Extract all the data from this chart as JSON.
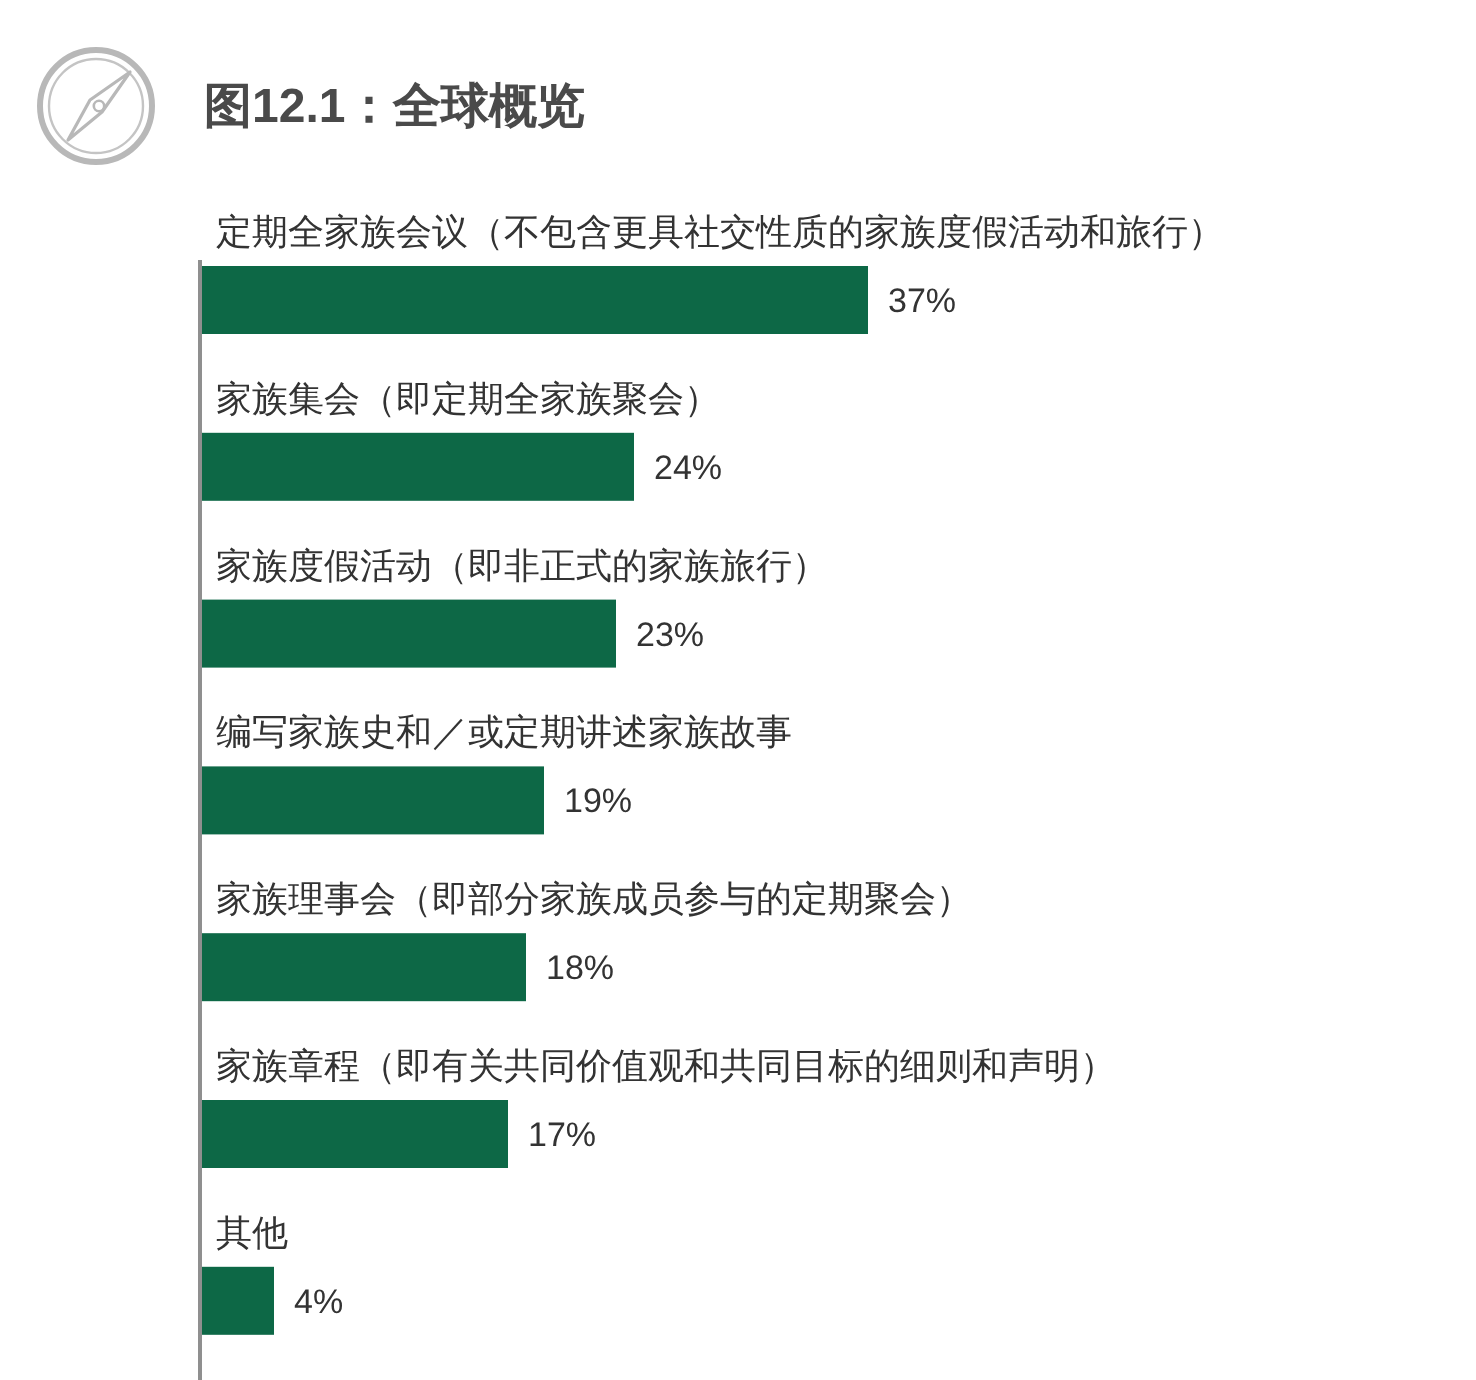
{
  "chart_data": {
    "type": "bar",
    "orientation": "horizontal",
    "title": "图12.1：全球概览",
    "categories": [
      "定期全家族会议（不包含更具社交性质的家族度假活动和旅行）",
      "家族集会（即定期全家族聚会）",
      "家族度假活动（即非正式的家族旅行）",
      "编写家族史和／或定期讲述家族故事",
      "家族理事会（即部分家族成员参与的定期聚会）",
      "家族章程（即有关共同价值观和共同目标的细则和声明）",
      "其他"
    ],
    "values": [
      37,
      24,
      23,
      19,
      18,
      17,
      4
    ],
    "color": "#0d6846",
    "value_labels": [
      "37%",
      "24%",
      "23%",
      "19%",
      "18%",
      "17%",
      "4%"
    ]
  }
}
